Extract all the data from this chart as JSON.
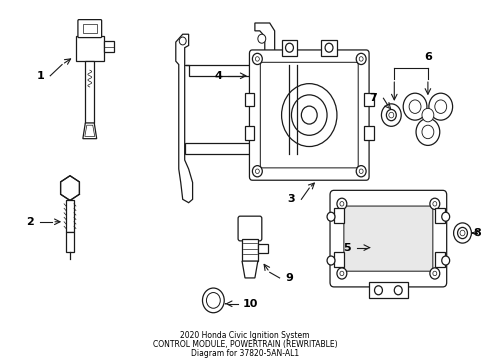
{
  "title": "2020 Honda Civic Ignition System\nCONTROL MODULE, POWERTRAIN (REWRITABLE)\nDiagram for 37820-5AN-AL1",
  "background_color": "#ffffff",
  "line_color": "#1a1a1a",
  "text_color": "#000000",
  "fig_width": 4.9,
  "fig_height": 3.6,
  "dpi": 100
}
